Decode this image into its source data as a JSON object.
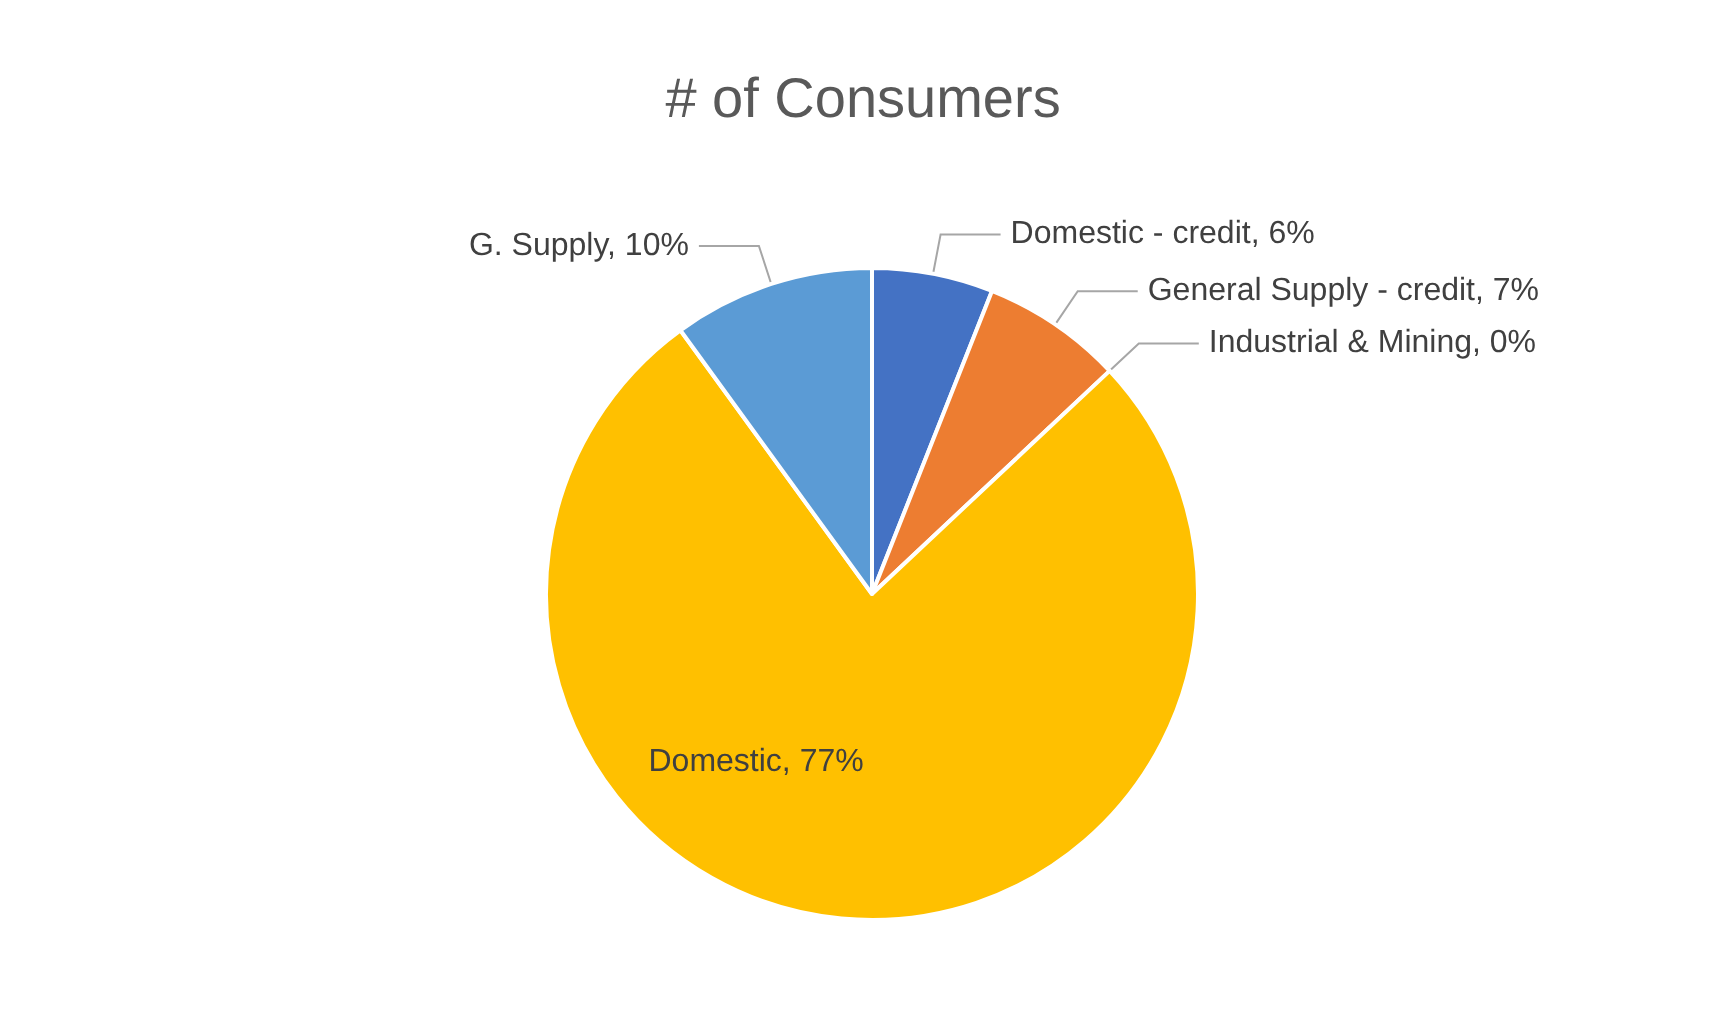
{
  "chart_data": {
    "type": "pie",
    "title": "# of Consumers",
    "categories": [
      "Domestic - credit",
      "General Supply - credit",
      "Industrial & Mining",
      "Domestic",
      "G. Supply"
    ],
    "values": [
      6,
      7,
      0,
      77,
      10
    ],
    "colors": [
      "#4472c4",
      "#ed7d31",
      "#a5a5a5",
      "#ffc000",
      "#5b9bd5"
    ],
    "value_labels": [
      "6%",
      "7%",
      "0%",
      "77%",
      "10%"
    ]
  }
}
